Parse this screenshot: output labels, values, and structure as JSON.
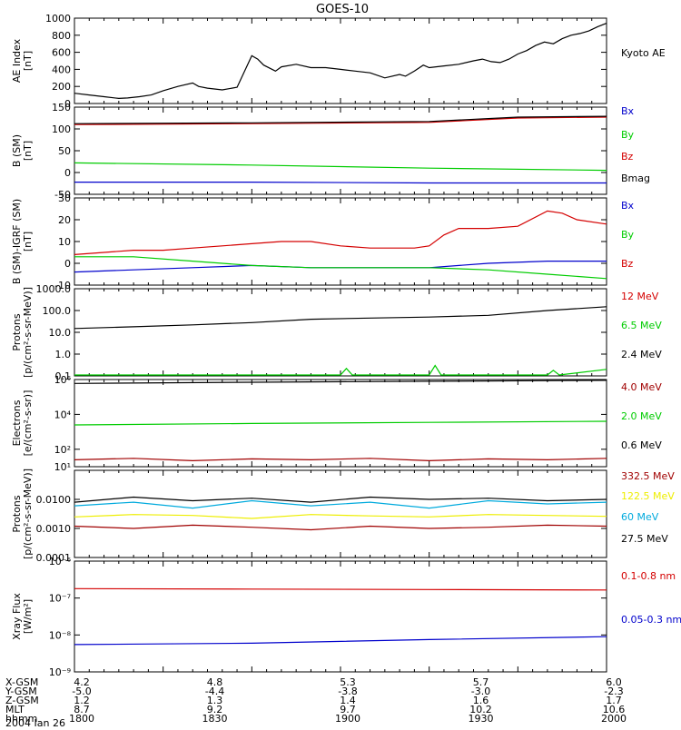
{
  "title": "GOES-10",
  "footer": {
    "row_labels": [
      "X-GSM",
      "Y-GSM",
      "Z-GSM",
      "MLT",
      "hhmm"
    ],
    "columns": [
      [
        "4.2",
        "-5.0",
        "1.2",
        "8.7",
        "1800"
      ],
      [
        "4.8",
        "-4.4",
        "1.3",
        "9.2",
        "1830"
      ],
      [
        "5.3",
        "-3.8",
        "1.4",
        "9.7",
        "1900"
      ],
      [
        "5.7",
        "-3.0",
        "1.6",
        "10.2",
        "1930"
      ],
      [
        "6.0",
        "-2.3",
        "1.7",
        "10.6",
        "2000"
      ]
    ],
    "date": "2004 Jan 26"
  },
  "colors": {
    "black": "#000000",
    "red": "#d40000",
    "green": "#00cc00",
    "blue": "#0000cc",
    "darkred": "#a00000",
    "cyan": "#00aadd",
    "yellow": "#eeee00"
  },
  "chart_data": [
    {
      "type": "line",
      "id": "ae",
      "ylabel_lines": [
        "AE Index",
        "[nT]"
      ],
      "ylim": [
        0,
        1000
      ],
      "scale": "linear",
      "yticks": [
        0,
        200,
        400,
        600,
        800,
        1000
      ],
      "yticklabels": [
        "0",
        "200",
        "400",
        "600",
        "800",
        "1000"
      ],
      "series": [
        {
          "name": "Kyoto AE",
          "color": "#000000",
          "x": [
            0,
            5,
            10,
            15,
            18,
            22,
            26,
            30,
            35,
            40,
            42,
            45,
            50,
            55,
            60,
            62,
            64,
            68,
            70,
            75,
            80,
            85,
            90,
            95,
            100,
            105,
            110,
            112,
            115,
            118,
            120,
            125,
            130,
            135,
            138,
            141,
            144,
            147,
            150,
            153,
            156,
            159,
            162,
            165,
            168,
            171,
            174,
            177,
            180
          ],
          "y": [
            120,
            100,
            80,
            60,
            65,
            80,
            100,
            150,
            200,
            240,
            200,
            180,
            160,
            190,
            560,
            520,
            450,
            380,
            430,
            460,
            420,
            420,
            400,
            380,
            360,
            300,
            340,
            320,
            380,
            450,
            420,
            440,
            460,
            500,
            520,
            490,
            480,
            520,
            580,
            620,
            680,
            720,
            700,
            760,
            800,
            820,
            850,
            900,
            940
          ]
        }
      ]
    },
    {
      "type": "line",
      "id": "bsm",
      "ylabel_lines": [
        "B (SM)",
        "[nT]"
      ],
      "ylim": [
        -50,
        150
      ],
      "scale": "linear",
      "yticks": [
        -50,
        0,
        50,
        100,
        150
      ],
      "yticklabels": [
        "-50",
        "0",
        "50",
        "100",
        "150"
      ],
      "series": [
        {
          "name": "Bx",
          "color": "#0000cc",
          "x": [
            0,
            60,
            120,
            180
          ],
          "y": [
            -22,
            -22,
            -24,
            -24
          ]
        },
        {
          "name": "By",
          "color": "#00cc00",
          "x": [
            0,
            60,
            120,
            180
          ],
          "y": [
            22,
            17,
            10,
            5
          ]
        },
        {
          "name": "Bz",
          "color": "#d40000",
          "x": [
            0,
            60,
            120,
            150,
            180
          ],
          "y": [
            110,
            112,
            115,
            125,
            127
          ]
        },
        {
          "name": "Bmag",
          "color": "#000000",
          "x": [
            0,
            60,
            120,
            150,
            180
          ],
          "y": [
            112,
            114,
            117,
            127,
            129
          ]
        }
      ]
    },
    {
      "type": "line",
      "id": "bsmigrf",
      "ylabel_lines": [
        "B (SM)-IGRF (SM)",
        "[nT]"
      ],
      "ylim": [
        -10,
        30
      ],
      "scale": "linear",
      "yticks": [
        -10,
        0,
        10,
        20,
        30
      ],
      "yticklabels": [
        "-10",
        "0",
        "10",
        "20",
        "30"
      ],
      "series": [
        {
          "name": "Bx",
          "color": "#0000cc",
          "x": [
            0,
            20,
            40,
            60,
            80,
            100,
            120,
            140,
            160,
            180
          ],
          "y": [
            -4,
            -3,
            -2,
            -1,
            -2,
            -2,
            -2,
            0,
            1,
            1
          ]
        },
        {
          "name": "By",
          "color": "#00cc00",
          "x": [
            0,
            20,
            40,
            60,
            80,
            100,
            120,
            140,
            160,
            180
          ],
          "y": [
            3,
            3,
            1,
            -1,
            -2,
            -2,
            -2,
            -3,
            -5,
            -7
          ]
        },
        {
          "name": "Bz",
          "color": "#d40000",
          "x": [
            0,
            10,
            20,
            30,
            40,
            50,
            60,
            70,
            80,
            90,
            100,
            110,
            115,
            120,
            125,
            130,
            140,
            150,
            160,
            165,
            170,
            180
          ],
          "y": [
            4,
            5,
            6,
            6,
            7,
            8,
            9,
            10,
            10,
            8,
            7,
            7,
            7,
            8,
            13,
            16,
            16,
            17,
            24,
            23,
            20,
            18
          ]
        }
      ]
    },
    {
      "type": "line",
      "id": "protons1",
      "ylabel_lines": [
        "Protons",
        "[p/(cm²-s-sr-MeV)]"
      ],
      "ylim": [
        0.1,
        1000
      ],
      "scale": "log",
      "yticks": [
        0.1,
        1,
        10,
        100,
        1000
      ],
      "yticklabels": [
        "0.1",
        "1.0",
        "10.0",
        "100.0",
        "1000.0"
      ],
      "series": [
        {
          "name": "12 MeV",
          "color": "#d40000",
          "x": [],
          "y": []
        },
        {
          "name": "6.5 MeV",
          "color": "#00cc00",
          "x": [
            0,
            60,
            90,
            92,
            94,
            120,
            122,
            124,
            160,
            162,
            164,
            180
          ],
          "y": [
            0.11,
            0.11,
            0.11,
            0.22,
            0.11,
            0.11,
            0.3,
            0.11,
            0.11,
            0.18,
            0.11,
            0.2
          ]
        },
        {
          "name": "2.4 MeV",
          "color": "#000000",
          "x": [
            0,
            20,
            40,
            60,
            80,
            100,
            120,
            140,
            160,
            180
          ],
          "y": [
            15,
            18,
            22,
            28,
            40,
            45,
            50,
            60,
            100,
            150
          ]
        }
      ]
    },
    {
      "type": "line",
      "id": "electrons",
      "ylabel_lines": [
        "Electrons",
        "[e/(cm²-s-sr)]"
      ],
      "ylim": [
        10,
        1000000
      ],
      "scale": "log",
      "yticks": [
        10,
        100,
        10000,
        1000000
      ],
      "yticklabels": [
        "10¹",
        "10²",
        "10⁴",
        "10⁶"
      ],
      "series": [
        {
          "name": "4.0 MeV",
          "color": "#a00000",
          "x": [
            0,
            20,
            40,
            60,
            80,
            100,
            120,
            140,
            160,
            180
          ],
          "y": [
            25,
            30,
            22,
            28,
            25,
            30,
            22,
            28,
            25,
            30
          ]
        },
        {
          "name": "2.0 MeV",
          "color": "#00cc00",
          "x": [
            0,
            60,
            120,
            180
          ],
          "y": [
            2500,
            3000,
            3500,
            4000
          ]
        },
        {
          "name": "0.6 MeV",
          "color": "#000000",
          "x": [
            0,
            60,
            120,
            180
          ],
          "y": [
            600000,
            700000,
            800000,
            900000
          ]
        }
      ]
    },
    {
      "type": "line",
      "id": "protons2",
      "ylabel_lines": [
        "Protons",
        "[p/(cm²-s-sr-MeV)]"
      ],
      "ylim": [
        0.0001,
        0.1
      ],
      "scale": "log",
      "yticks": [
        0.0001,
        0.001,
        0.01
      ],
      "yticklabels": [
        "0.0001",
        "0.0010",
        "0.0100"
      ],
      "series": [
        {
          "name": "332.5 MeV",
          "color": "#a00000",
          "x": [
            0,
            20,
            40,
            60,
            80,
            100,
            120,
            140,
            160,
            180
          ],
          "y": [
            0.0012,
            0.001,
            0.0013,
            0.0011,
            0.0009,
            0.0012,
            0.001,
            0.0011,
            0.0013,
            0.0012
          ]
        },
        {
          "name": "122.5 MeV",
          "color": "#eeee00",
          "x": [
            0,
            20,
            40,
            60,
            80,
            100,
            120,
            140,
            160,
            180
          ],
          "y": [
            0.0025,
            0.003,
            0.0028,
            0.0022,
            0.003,
            0.0027,
            0.0025,
            0.003,
            0.0028,
            0.0026
          ]
        },
        {
          "name": "60 MeV",
          "color": "#00aadd",
          "x": [
            0,
            20,
            40,
            60,
            80,
            100,
            120,
            140,
            160,
            180
          ],
          "y": [
            0.006,
            0.008,
            0.005,
            0.009,
            0.006,
            0.008,
            0.005,
            0.009,
            0.007,
            0.008
          ]
        },
        {
          "name": "27.5 MeV",
          "color": "#000000",
          "x": [
            0,
            20,
            40,
            60,
            80,
            100,
            120,
            140,
            160,
            180
          ],
          "y": [
            0.008,
            0.012,
            0.009,
            0.011,
            0.008,
            0.012,
            0.01,
            0.011,
            0.009,
            0.01
          ]
        }
      ]
    },
    {
      "type": "line",
      "id": "xray",
      "ylabel_lines": [
        "Xray Flux",
        "[W/m²]"
      ],
      "ylim": [
        1e-09,
        1e-06
      ],
      "scale": "log",
      "yticks": [
        1e-09,
        1e-08,
        1e-07,
        1e-06
      ],
      "yticklabels": [
        "10⁻⁹",
        "10⁻⁸",
        "10⁻⁷",
        "10⁻⁶"
      ],
      "series": [
        {
          "name": "0.1-0.8 nm",
          "color": "#d40000",
          "x": [
            0,
            60,
            120,
            180
          ],
          "y": [
            1.8e-07,
            1.75e-07,
            1.7e-07,
            1.65e-07
          ]
        },
        {
          "name": "0.05-0.3 nm",
          "color": "#0000cc",
          "x": [
            0,
            60,
            120,
            180
          ],
          "y": [
            5.5e-09,
            6e-09,
            7.5e-09,
            9e-09
          ]
        }
      ]
    }
  ]
}
